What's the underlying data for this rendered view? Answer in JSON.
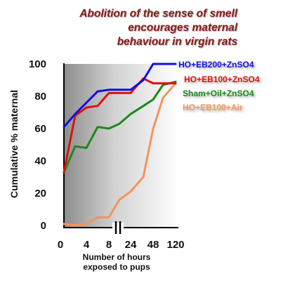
{
  "chart_data": {
    "type": "line",
    "title": [
      "Abolition of the sense of smell",
      "encourages maternal",
      "behaviour in virgin rats"
    ],
    "ylabel": "Cumulative % maternal",
    "xlabel": [
      "Number of hours",
      "exposed to pups"
    ],
    "x_ticks": [
      "0",
      "4",
      "8",
      "24",
      "48",
      "120"
    ],
    "y_ticks": [
      "0",
      "20",
      "40",
      "60",
      "80",
      "100"
    ],
    "ylim": [
      0,
      100
    ],
    "grid": false,
    "axis_break": "between 8 and 24",
    "legend_position": "right",
    "series": [
      {
        "name": "HO+EB200+ZnSO4",
        "color": "#1010e0",
        "points": [
          [
            0,
            61
          ],
          [
            2,
            69
          ],
          [
            4,
            76
          ],
          [
            6,
            83
          ],
          [
            8,
            84
          ],
          [
            24,
            84
          ],
          [
            36,
            90
          ],
          [
            48,
            100
          ],
          [
            120,
            100
          ]
        ]
      },
      {
        "name": "HO+EB100+ZnSO4",
        "color": "#e01010",
        "points": [
          [
            0,
            33
          ],
          [
            2,
            68
          ],
          [
            4,
            73
          ],
          [
            6,
            74
          ],
          [
            8,
            82
          ],
          [
            24,
            82
          ],
          [
            36,
            91
          ],
          [
            48,
            88
          ],
          [
            120,
            88
          ]
        ]
      },
      {
        "name": "Sham+Oil+ZnSO4",
        "color": "#1a8a1a",
        "points": [
          [
            0,
            33
          ],
          [
            2,
            49
          ],
          [
            4,
            48
          ],
          [
            6,
            61
          ],
          [
            8,
            60
          ],
          [
            16,
            63
          ],
          [
            24,
            69
          ],
          [
            36,
            74
          ],
          [
            48,
            78
          ],
          [
            72,
            87
          ],
          [
            120,
            89
          ]
        ]
      },
      {
        "name": "HO+EB100+Air",
        "color": "#f4945a",
        "points": [
          [
            0,
            1
          ],
          [
            2,
            0
          ],
          [
            4,
            1
          ],
          [
            6,
            5
          ],
          [
            8,
            5
          ],
          [
            16,
            16
          ],
          [
            24,
            21
          ],
          [
            36,
            30
          ],
          [
            48,
            60
          ],
          [
            72,
            79
          ],
          [
            120,
            88
          ]
        ]
      }
    ]
  }
}
